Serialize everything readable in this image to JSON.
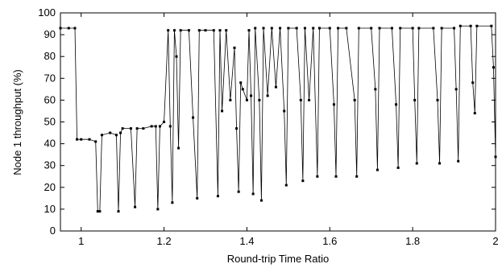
{
  "chart_data": {
    "type": "line",
    "xlabel": "Round-trip Time Ratio",
    "ylabel": "Node 1 throughput (%)",
    "xlim": [
      0.95,
      2.0
    ],
    "xticks": [
      1,
      1.2,
      1.4,
      1.6,
      1.8,
      2
    ],
    "ylim": [
      0,
      100
    ],
    "yticks": [
      0,
      10,
      20,
      30,
      40,
      50,
      60,
      70,
      80,
      90,
      100
    ],
    "color": "#000000",
    "x": [
      0.95,
      0.97,
      0.985,
      0.99,
      1.0,
      1.02,
      1.035,
      1.04,
      1.045,
      1.05,
      1.07,
      1.085,
      1.09,
      1.095,
      1.1,
      1.12,
      1.13,
      1.135,
      1.15,
      1.17,
      1.18,
      1.185,
      1.19,
      1.2,
      1.21,
      1.215,
      1.22,
      1.225,
      1.23,
      1.235,
      1.24,
      1.26,
      1.27,
      1.28,
      1.285,
      1.3,
      1.32,
      1.33,
      1.335,
      1.34,
      1.35,
      1.36,
      1.37,
      1.375,
      1.38,
      1.385,
      1.39,
      1.4,
      1.405,
      1.41,
      1.415,
      1.42,
      1.43,
      1.435,
      1.44,
      1.45,
      1.46,
      1.47,
      1.48,
      1.49,
      1.495,
      1.5,
      1.52,
      1.53,
      1.535,
      1.54,
      1.55,
      1.56,
      1.57,
      1.575,
      1.6,
      1.61,
      1.615,
      1.62,
      1.64,
      1.66,
      1.665,
      1.67,
      1.7,
      1.71,
      1.715,
      1.72,
      1.75,
      1.76,
      1.765,
      1.77,
      1.8,
      1.805,
      1.81,
      1.815,
      1.85,
      1.86,
      1.865,
      1.87,
      1.9,
      1.905,
      1.91,
      1.915,
      1.94,
      1.945,
      1.95,
      1.955,
      1.99,
      1.995,
      2.0
    ],
    "values": [
      93,
      93,
      93,
      42,
      42,
      42,
      41,
      9,
      9,
      44,
      45,
      44,
      9,
      45,
      47,
      47,
      11,
      47,
      47,
      48,
      48,
      10,
      48,
      50,
      92,
      48,
      13,
      92,
      80,
      38,
      92,
      92,
      52,
      15,
      92,
      92,
      92,
      16,
      92,
      55,
      92,
      60,
      84,
      47,
      18,
      68,
      65,
      60,
      92,
      62,
      17,
      93,
      60,
      14,
      93,
      62,
      93,
      66,
      93,
      55,
      21,
      93,
      93,
      60,
      23,
      93,
      60,
      93,
      25,
      93,
      93,
      58,
      25,
      93,
      93,
      60,
      25,
      93,
      93,
      65,
      28,
      93,
      93,
      58,
      29,
      93,
      93,
      60,
      31,
      93,
      93,
      60,
      31,
      93,
      93,
      65,
      32,
      94,
      94,
      68,
      54,
      94,
      94,
      75,
      34
    ]
  }
}
